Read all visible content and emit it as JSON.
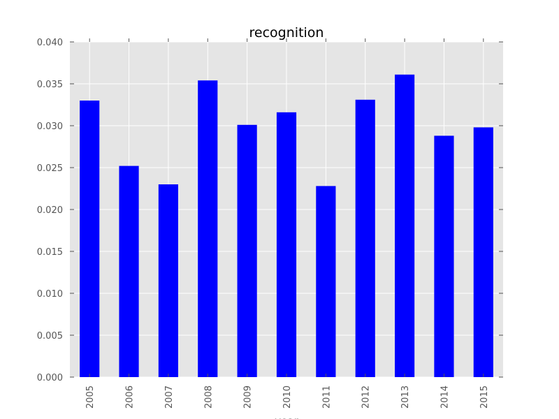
{
  "chart_data": {
    "type": "bar",
    "title": "recognition",
    "xlabel": "year",
    "ylabel": "",
    "categories": [
      "2005",
      "2006",
      "2007",
      "2008",
      "2009",
      "2010",
      "2011",
      "2012",
      "2013",
      "2014",
      "2015"
    ],
    "values": [
      0.033,
      0.0252,
      0.023,
      0.0354,
      0.0301,
      0.0316,
      0.0228,
      0.0331,
      0.0361,
      0.0288,
      0.0298
    ],
    "ylim": [
      0,
      0.04
    ],
    "yticks": [
      "0.000",
      "0.005",
      "0.010",
      "0.015",
      "0.020",
      "0.025",
      "0.030",
      "0.035",
      "0.040"
    ],
    "grid": true,
    "colors": {
      "bar": "#0000ff",
      "plot_bg": "#e5e5e5",
      "grid": "#ffffff"
    }
  }
}
